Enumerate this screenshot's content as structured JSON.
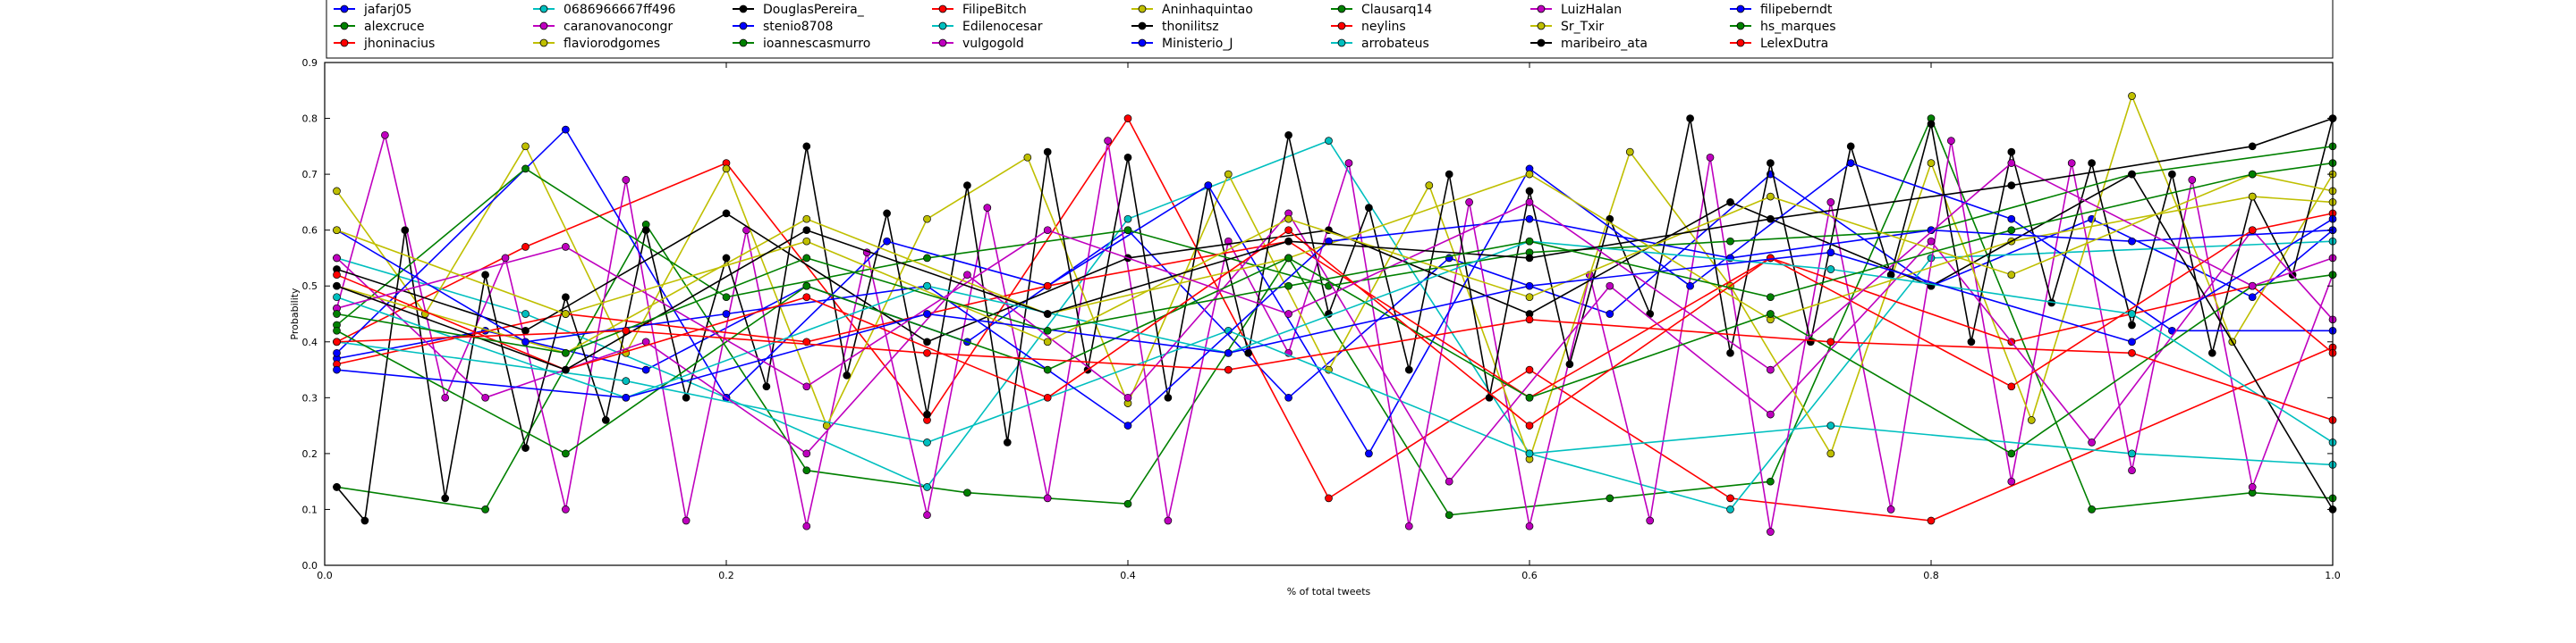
{
  "chart_data": {
    "type": "line",
    "title": "",
    "xlabel": "% of total tweets",
    "ylabel": "Probability",
    "xlim": [
      0.0,
      1.0
    ],
    "ylim": [
      0.0,
      0.9
    ],
    "x_ticks": [
      "0.0",
      "0.2",
      "0.4",
      "0.6",
      "0.8",
      "1.0"
    ],
    "y_ticks": [
      "0.0",
      "0.1",
      "0.2",
      "0.3",
      "0.4",
      "0.5",
      "0.6",
      "0.7",
      "0.8",
      "0.9"
    ],
    "grid": false,
    "legend_position": "top",
    "series": [
      {
        "name": "jafarj05",
        "color": "#0000ff",
        "x": [
          0.006,
          0.08,
          0.16,
          0.24,
          0.32,
          0.4,
          0.48,
          0.56,
          0.64,
          0.72,
          0.8,
          0.88,
          0.96,
          1.0
        ],
        "values": [
          0.37,
          0.42,
          0.35,
          0.5,
          0.4,
          0.6,
          0.3,
          0.55,
          0.45,
          0.7,
          0.5,
          0.62,
          0.48,
          0.6
        ]
      },
      {
        "name": "alexcruce",
        "color": "#008000",
        "x": [
          0.006,
          0.08,
          0.16,
          0.24,
          0.32,
          0.4,
          0.48,
          0.56,
          0.64,
          0.72,
          0.8,
          0.88,
          0.96,
          1.0
        ],
        "values": [
          0.14,
          0.1,
          0.61,
          0.17,
          0.13,
          0.11,
          0.55,
          0.09,
          0.12,
          0.15,
          0.8,
          0.1,
          0.13,
          0.12
        ]
      },
      {
        "name": "jhoninacius",
        "color": "#ff0000",
        "x": [
          0.006,
          0.1,
          0.2,
          0.3,
          0.4,
          0.5,
          0.6,
          0.7,
          0.8,
          1.0
        ],
        "values": [
          0.4,
          0.57,
          0.72,
          0.26,
          0.8,
          0.12,
          0.35,
          0.12,
          0.08,
          0.39
        ]
      },
      {
        "name": "0686966667ff496",
        "color": "#00bfbf",
        "x": [
          0.006,
          0.1,
          0.2,
          0.3,
          0.4,
          0.5,
          0.6,
          0.7,
          0.8,
          1.0
        ],
        "values": [
          0.55,
          0.45,
          0.3,
          0.14,
          0.62,
          0.76,
          0.2,
          0.1,
          0.55,
          0.58
        ]
      },
      {
        "name": "caranovanocongr",
        "color": "#bf00bf",
        "x": [
          0.006,
          0.03,
          0.06,
          0.09,
          0.12,
          0.15,
          0.18,
          0.21,
          0.24,
          0.27,
          0.3,
          0.33,
          0.36,
          0.39,
          0.42,
          0.45,
          0.48,
          0.51,
          0.54,
          0.57,
          0.6,
          0.63,
          0.66,
          0.69,
          0.72,
          0.75,
          0.78,
          0.81,
          0.84,
          0.87,
          0.9,
          0.93,
          0.96,
          1.0
        ],
        "values": [
          0.46,
          0.77,
          0.3,
          0.55,
          0.1,
          0.69,
          0.08,
          0.6,
          0.07,
          0.56,
          0.09,
          0.64,
          0.12,
          0.76,
          0.08,
          0.58,
          0.38,
          0.72,
          0.07,
          0.65,
          0.07,
          0.52,
          0.08,
          0.73,
          0.06,
          0.65,
          0.1,
          0.76,
          0.15,
          0.72,
          0.17,
          0.69,
          0.14,
          0.52
        ]
      },
      {
        "name": "flaviorodgomes",
        "color": "#bfbf00",
        "x": [
          0.006,
          0.05,
          0.1,
          0.15,
          0.2,
          0.25,
          0.3,
          0.35,
          0.4,
          0.45,
          0.5,
          0.55,
          0.6,
          0.65,
          0.7,
          0.75,
          0.8,
          0.85,
          0.9,
          0.95,
          1.0
        ],
        "values": [
          0.67,
          0.45,
          0.75,
          0.38,
          0.71,
          0.25,
          0.62,
          0.73,
          0.29,
          0.7,
          0.35,
          0.68,
          0.19,
          0.74,
          0.5,
          0.2,
          0.72,
          0.26,
          0.84,
          0.4,
          0.7
        ]
      },
      {
        "name": "DouglasPereira_",
        "color": "#000000",
        "x": [
          0.006,
          0.02,
          0.04,
          0.06,
          0.08,
          0.1,
          0.12,
          0.14,
          0.16,
          0.18,
          0.2,
          0.22,
          0.24,
          0.26,
          0.28,
          0.3,
          0.32,
          0.34,
          0.36,
          0.38,
          0.4,
          0.42,
          0.44,
          0.46,
          0.48,
          0.5,
          0.52,
          0.54,
          0.56,
          0.58,
          0.6,
          0.62,
          0.64,
          0.66,
          0.68,
          0.7,
          0.72,
          0.74,
          0.76,
          0.78,
          0.8,
          0.82,
          0.84,
          0.86,
          0.88,
          0.9,
          0.92,
          0.94,
          0.96,
          0.98,
          1.0
        ],
        "values": [
          0.14,
          0.08,
          0.6,
          0.12,
          0.52,
          0.21,
          0.48,
          0.26,
          0.6,
          0.3,
          0.55,
          0.32,
          0.75,
          0.34,
          0.63,
          0.27,
          0.68,
          0.22,
          0.74,
          0.35,
          0.73,
          0.3,
          0.68,
          0.38,
          0.77,
          0.45,
          0.64,
          0.35,
          0.7,
          0.3,
          0.67,
          0.36,
          0.62,
          0.45,
          0.8,
          0.38,
          0.72,
          0.4,
          0.75,
          0.52,
          0.79,
          0.4,
          0.74,
          0.47,
          0.72,
          0.43,
          0.7,
          0.38,
          0.66,
          0.52,
          0.8
        ]
      },
      {
        "name": "stenio8708",
        "color": "#0000ff",
        "x": [
          0.006,
          0.12,
          0.2,
          0.28,
          0.36,
          0.44,
          0.52,
          0.6,
          0.68,
          0.76,
          0.84,
          0.92,
          1.0
        ],
        "values": [
          0.38,
          0.78,
          0.3,
          0.58,
          0.5,
          0.68,
          0.2,
          0.71,
          0.5,
          0.72,
          0.62,
          0.42,
          0.42
        ]
      },
      {
        "name": "ioannescasmurro",
        "color": "#008000",
        "x": [
          0.006,
          0.1,
          0.2,
          0.3,
          0.4,
          0.5,
          0.6,
          0.7,
          0.8,
          0.9,
          1.0
        ],
        "values": [
          0.43,
          0.71,
          0.48,
          0.55,
          0.6,
          0.5,
          0.56,
          0.58,
          0.6,
          0.7,
          0.75
        ]
      },
      {
        "name": "FilipeBitch",
        "color": "#ff0000",
        "x": [
          0.006,
          0.12,
          0.24,
          0.36,
          0.48,
          0.6,
          0.72,
          0.84,
          0.96,
          1.0
        ],
        "values": [
          0.36,
          0.45,
          0.4,
          0.5,
          0.58,
          0.3,
          0.55,
          0.4,
          0.5,
          0.38
        ]
      },
      {
        "name": "Edilenocesar",
        "color": "#00bfbf",
        "x": [
          0.006,
          0.15,
          0.3,
          0.45,
          0.6,
          0.75,
          0.9,
          1.0
        ],
        "values": [
          0.4,
          0.33,
          0.22,
          0.42,
          0.2,
          0.25,
          0.2,
          0.18
        ]
      },
      {
        "name": "vulgogold",
        "color": "#bf00bf",
        "x": [
          0.006,
          0.08,
          0.16,
          0.24,
          0.32,
          0.4,
          0.48,
          0.56,
          0.64,
          0.72,
          0.8,
          0.88,
          0.96,
          1.0
        ],
        "values": [
          0.55,
          0.3,
          0.4,
          0.2,
          0.52,
          0.3,
          0.63,
          0.15,
          0.5,
          0.27,
          0.58,
          0.22,
          0.6,
          0.44
        ]
      },
      {
        "name": "Aninhaquintao",
        "color": "#bfbf00",
        "x": [
          0.006,
          0.12,
          0.24,
          0.36,
          0.48,
          0.6,
          0.72,
          0.84,
          0.96,
          1.0
        ],
        "values": [
          0.5,
          0.38,
          0.62,
          0.45,
          0.55,
          0.7,
          0.44,
          0.58,
          0.66,
          0.65
        ]
      },
      {
        "name": "thonilitsz",
        "color": "#000000",
        "x": [
          0.006,
          0.1,
          0.2,
          0.3,
          0.4,
          0.5,
          0.6,
          0.7,
          0.8,
          0.9,
          1.0
        ],
        "values": [
          0.53,
          0.42,
          0.63,
          0.4,
          0.55,
          0.6,
          0.45,
          0.65,
          0.5,
          0.7,
          0.1
        ]
      },
      {
        "name": "Ministerio_J",
        "color": "#0000ff",
        "x": [
          0.006,
          0.1,
          0.2,
          0.3,
          0.4,
          0.5,
          0.6,
          0.7,
          0.8,
          0.9,
          1.0
        ],
        "values": [
          0.6,
          0.4,
          0.45,
          0.5,
          0.25,
          0.58,
          0.62,
          0.55,
          0.6,
          0.58,
          0.6
        ]
      },
      {
        "name": "Clausarq14",
        "color": "#008000",
        "x": [
          0.006,
          0.12,
          0.24,
          0.36,
          0.48,
          0.6,
          0.72,
          0.84,
          0.96,
          1.0
        ],
        "values": [
          0.42,
          0.2,
          0.5,
          0.35,
          0.55,
          0.3,
          0.45,
          0.2,
          0.5,
          0.52
        ]
      },
      {
        "name": "neylins",
        "color": "#ff0000",
        "x": [
          0.006,
          0.12,
          0.24,
          0.36,
          0.48,
          0.6,
          0.72,
          0.84,
          0.96,
          1.0
        ],
        "values": [
          0.52,
          0.35,
          0.48,
          0.3,
          0.6,
          0.25,
          0.55,
          0.32,
          0.6,
          0.63
        ]
      },
      {
        "name": "arrobateus",
        "color": "#00bfbf",
        "x": [
          0.006,
          0.15,
          0.3,
          0.45,
          0.6,
          0.75,
          0.9,
          1.0
        ],
        "values": [
          0.48,
          0.3,
          0.5,
          0.38,
          0.58,
          0.53,
          0.45,
          0.22
        ]
      },
      {
        "name": "LuizHalan",
        "color": "#bf00bf",
        "x": [
          0.006,
          0.12,
          0.24,
          0.36,
          0.48,
          0.6,
          0.72,
          0.84,
          0.96,
          1.0
        ],
        "values": [
          0.46,
          0.57,
          0.32,
          0.6,
          0.45,
          0.65,
          0.35,
          0.72,
          0.5,
          0.55
        ]
      },
      {
        "name": "Sr_Txir",
        "color": "#bfbf00",
        "x": [
          0.006,
          0.12,
          0.24,
          0.36,
          0.48,
          0.6,
          0.72,
          0.84,
          0.96,
          1.0
        ],
        "values": [
          0.6,
          0.45,
          0.58,
          0.4,
          0.62,
          0.48,
          0.66,
          0.52,
          0.7,
          0.67
        ]
      },
      {
        "name": "maribeiro_ata",
        "color": "#000000",
        "x": [
          0.006,
          0.12,
          0.24,
          0.36,
          0.48,
          0.6,
          0.72,
          0.84,
          0.96,
          1.0
        ],
        "values": [
          0.5,
          0.35,
          0.6,
          0.45,
          0.58,
          0.55,
          0.62,
          0.68,
          0.75,
          0.8
        ]
      },
      {
        "name": "filipeberndt",
        "color": "#0000ff",
        "x": [
          0.006,
          0.15,
          0.3,
          0.45,
          0.6,
          0.75,
          0.9,
          1.0
        ],
        "values": [
          0.35,
          0.3,
          0.45,
          0.38,
          0.5,
          0.56,
          0.4,
          0.62
        ]
      },
      {
        "name": "hs_marques",
        "color": "#008000",
        "x": [
          0.006,
          0.12,
          0.24,
          0.36,
          0.48,
          0.6,
          0.72,
          0.84,
          0.96,
          1.0
        ],
        "values": [
          0.45,
          0.38,
          0.55,
          0.42,
          0.5,
          0.58,
          0.48,
          0.6,
          0.7,
          0.72
        ]
      },
      {
        "name": "LelexDutra",
        "color": "#ff0000",
        "x": [
          0.006,
          0.15,
          0.3,
          0.45,
          0.6,
          0.75,
          0.9,
          1.0
        ],
        "values": [
          0.4,
          0.42,
          0.38,
          0.35,
          0.44,
          0.4,
          0.38,
          0.26
        ]
      }
    ]
  }
}
